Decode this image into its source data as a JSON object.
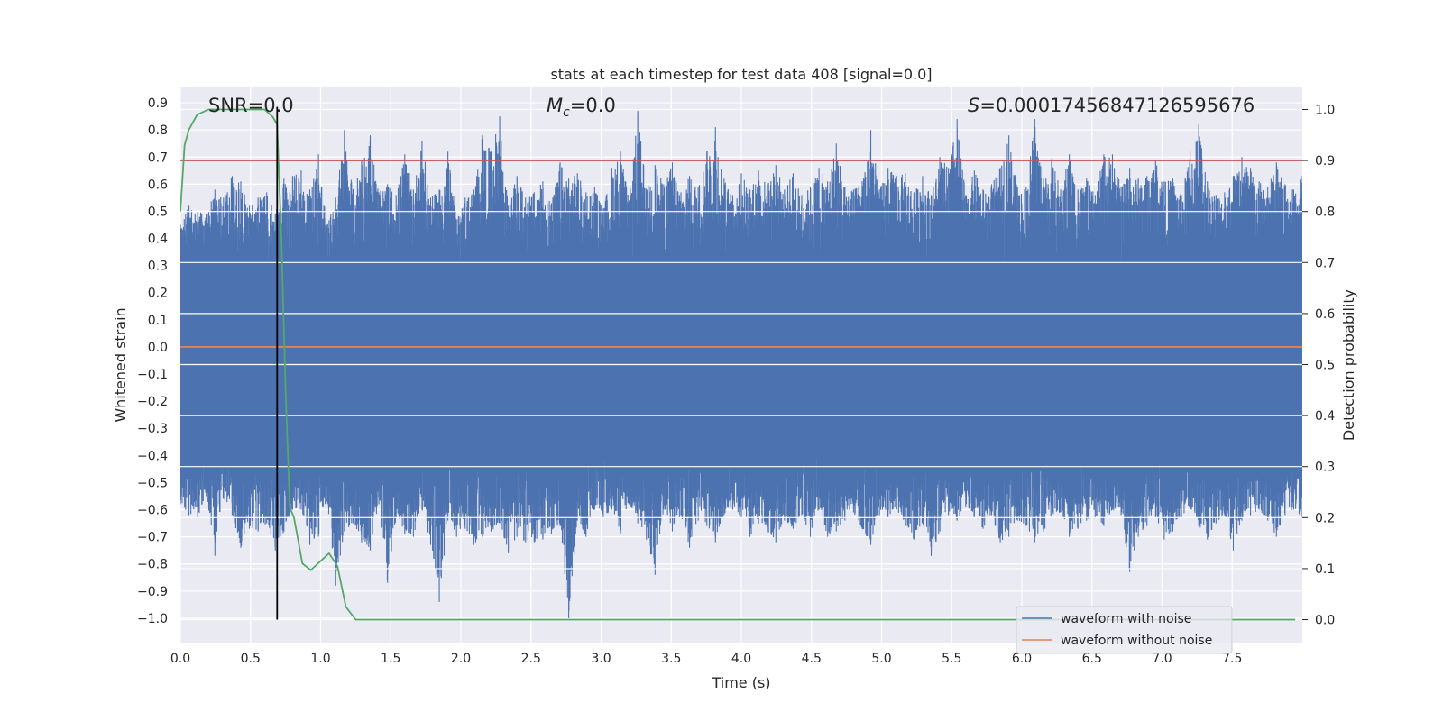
{
  "chart_data": {
    "type": "line",
    "title": "stats at each timestep for test data 408 [signal=0.0]",
    "xlabel": "Time (s)",
    "ylabel_left": "Whitened strain",
    "ylabel_right": "Detection probability",
    "xlim": [
      0,
      8.0
    ],
    "ylim_left": [
      -1.09,
      0.96
    ],
    "ylim_right": [
      -0.045,
      1.045
    ],
    "x_ticks": [
      "0.0",
      "0.5",
      "1.0",
      "1.5",
      "2.0",
      "2.5",
      "3.0",
      "3.5",
      "4.0",
      "4.5",
      "5.0",
      "5.5",
      "6.0",
      "6.5",
      "7.0",
      "7.5"
    ],
    "y_ticks_left": [
      "0.9",
      "0.8",
      "0.7",
      "0.6",
      "0.5",
      "0.4",
      "0.3",
      "0.2",
      "0.1",
      "0.0",
      "−0.1",
      "−0.2",
      "−0.3",
      "−0.4",
      "−0.5",
      "−0.6",
      "−0.7",
      "−0.8",
      "−0.9",
      "−1.0"
    ],
    "y_ticks_right": [
      "1.0",
      "0.9",
      "0.8",
      "0.7",
      "0.6",
      "0.5",
      "0.4",
      "0.3",
      "0.2",
      "0.1",
      "0.0"
    ],
    "annotations": {
      "snr": "SNR=0.0",
      "mc_symbol": "M",
      "mc_sub": "c",
      "mc_value": "=0.0",
      "s_symbol": "S",
      "s_value": "=0.00017456847126595676"
    },
    "grid": true,
    "legend_position": "lower-right",
    "series": [
      {
        "name": "waveform with noise",
        "color": "#4c72b0",
        "envelope_upper": [
          0.45,
          0.52,
          0.5,
          0.49,
          0.58,
          0.55,
          0.63,
          0.61,
          0.52,
          0.55,
          0.57,
          0.49,
          0.62,
          0.63,
          0.65,
          0.58,
          0.71,
          0.45,
          0.55,
          0.8,
          0.58,
          0.69,
          0.78,
          0.57,
          0.6,
          0.56,
          0.71,
          0.58,
          0.76,
          0.55,
          0.58,
          0.72,
          0.47,
          0.55,
          0.58,
          0.78,
          0.72,
          0.85,
          0.52,
          0.63,
          0.55,
          0.57,
          0.61,
          0.53,
          0.68,
          0.62,
          0.64,
          0.57,
          0.59,
          0.51,
          0.66,
          0.72,
          0.54,
          0.87,
          0.58,
          0.67,
          0.6,
          0.68,
          0.57,
          0.63,
          0.59,
          0.72,
          0.81,
          0.62,
          0.56,
          0.64,
          0.58,
          0.65,
          0.6,
          0.67,
          0.58,
          0.64,
          0.56,
          0.59,
          0.66,
          0.61,
          0.75,
          0.59,
          0.58,
          0.61,
          0.8,
          0.58,
          0.66,
          0.63,
          0.64,
          0.57,
          0.63,
          0.56,
          0.7,
          0.66,
          0.84,
          0.56,
          0.65,
          0.58,
          0.6,
          0.66,
          0.78,
          0.59,
          0.59,
          0.84,
          0.62,
          0.7,
          0.58,
          0.71,
          0.58,
          0.62,
          0.56,
          0.71,
          0.71,
          0.59,
          0.66,
          0.62,
          0.63,
          0.69,
          0.61,
          0.62,
          0.56,
          0.72,
          0.82,
          0.61,
          0.56,
          0.57,
          0.63,
          0.7,
          0.66,
          0.61,
          0.59,
          0.68,
          0.6,
          0.58,
          0.63
        ],
        "envelope_lower": [
          -0.58,
          -0.62,
          -0.63,
          -0.55,
          -0.77,
          -0.56,
          -0.62,
          -0.74,
          -0.67,
          -0.68,
          -0.65,
          -0.75,
          -0.68,
          -0.6,
          -0.6,
          -0.73,
          -0.7,
          -0.57,
          -0.88,
          -0.68,
          -0.65,
          -0.72,
          -0.75,
          -0.58,
          -0.87,
          -0.63,
          -0.69,
          -0.7,
          -0.6,
          -0.73,
          -0.94,
          -0.64,
          -0.7,
          -0.67,
          -0.73,
          -0.7,
          -0.68,
          -0.65,
          -0.76,
          -0.7,
          -0.72,
          -0.72,
          -0.71,
          -0.69,
          -0.66,
          -1.0,
          -0.64,
          -0.7,
          -0.6,
          -0.63,
          -0.6,
          -0.69,
          -0.58,
          -0.65,
          -0.71,
          -0.84,
          -0.6,
          -0.68,
          -0.62,
          -0.74,
          -0.64,
          -0.66,
          -0.72,
          -0.62,
          -0.6,
          -0.63,
          -0.7,
          -0.65,
          -0.68,
          -0.72,
          -0.64,
          -0.67,
          -0.62,
          -0.7,
          -0.6,
          -0.7,
          -0.68,
          -0.64,
          -0.61,
          -0.67,
          -0.73,
          -0.62,
          -0.63,
          -0.6,
          -0.66,
          -0.71,
          -0.65,
          -0.77,
          -0.68,
          -0.62,
          -0.64,
          -0.59,
          -0.63,
          -0.67,
          -0.62,
          -0.72,
          -0.7,
          -0.64,
          -0.66,
          -0.72,
          -0.68,
          -0.62,
          -0.61,
          -0.7,
          -0.67,
          -0.64,
          -0.63,
          -0.66,
          -0.6,
          -0.62,
          -0.83,
          -0.7,
          -0.66,
          -0.63,
          -0.71,
          -0.68,
          -0.63,
          -0.6,
          -0.66,
          -0.71,
          -0.65,
          -0.62,
          -0.75,
          -0.64,
          -0.62,
          -0.6,
          -0.64,
          -0.7,
          -0.62,
          -0.6,
          -0.63
        ]
      },
      {
        "name": "waveform without noise",
        "color": "#dd8452",
        "x": [
          0,
          8.0
        ],
        "y": [
          0.0,
          0.0
        ]
      },
      {
        "name": "",
        "axis": "right",
        "color": "#55a868",
        "x": [
          0.0,
          0.03,
          0.06,
          0.12,
          0.2,
          0.3,
          0.4,
          0.5,
          0.6,
          0.66,
          0.69,
          0.72,
          0.75,
          0.78,
          0.81,
          0.87,
          0.93,
          1.0,
          1.06,
          1.12,
          1.18,
          1.25,
          1.3,
          1.5,
          2.0,
          3.0,
          4.0,
          5.0,
          6.0,
          7.0,
          7.95
        ],
        "y": [
          0.8,
          0.93,
          0.96,
          0.99,
          1.0,
          1.0,
          1.0,
          1.0,
          1.0,
          0.985,
          0.97,
          0.75,
          0.45,
          0.22,
          0.2,
          0.11,
          0.097,
          0.115,
          0.13,
          0.105,
          0.025,
          0.0,
          0.0,
          0.0,
          0.0,
          0.0,
          0.0,
          0.0,
          0.0,
          0.0,
          0.0
        ]
      }
    ],
    "threshold_right": 0.9,
    "threshold_color": "#c44e52",
    "vline_x": 0.69,
    "vline_color": "#000000"
  }
}
